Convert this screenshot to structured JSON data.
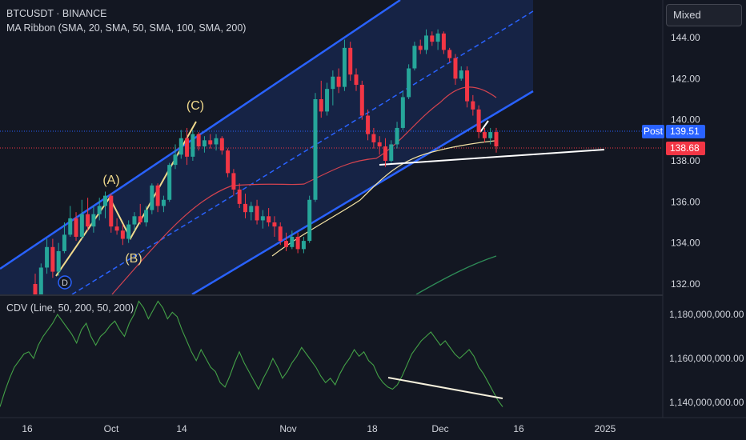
{
  "legend": {
    "symbol": "BTCUSDT · BINANCE",
    "ribbon": "MA Ribbon (SMA, 20, SMA, 50, SMA, 100, SMA, 200)",
    "cdv": "CDV (Line, 50, 200, 50, 200)"
  },
  "toolbar": {
    "mixed_label": "Mixed"
  },
  "price_tags": {
    "post_label": "Post",
    "post_value": "139.51",
    "last_value": "138.68"
  },
  "annotations": {
    "wave_a": "(A)",
    "wave_b": "(B)",
    "wave_c": "(C)",
    "wave_d": "D"
  },
  "colors": {
    "background": "#131722",
    "up": "#26a69a",
    "down": "#f23645",
    "channel": "#2962ff",
    "post_line": "#2962ff",
    "last_line": "#f23645",
    "ma20": "#d3434f",
    "ma50": "#f3e3a5",
    "ma200": "#2e8b57",
    "cdv_line": "#43a047",
    "wave": "#f0d98c",
    "divergence": "#ffffff"
  },
  "chart_data": [
    {
      "type": "candlestick",
      "title": "BTCUSDT · BINANCE",
      "x_ticks": [
        "16",
        "Oct",
        "14",
        "Nov",
        "18",
        "Dec",
        "16",
        "2025"
      ],
      "y_ticks": [
        "132.00",
        "134.00",
        "136.00",
        "138.00",
        "140.00",
        "142.00",
        "144.00"
      ],
      "ylim": [
        131.6,
        146.3
      ],
      "ohlc": [
        [
          132.0,
          132.5,
          131.2,
          131.4
        ],
        [
          131.4,
          133.0,
          131.3,
          132.8
        ],
        [
          132.8,
          134.2,
          132.5,
          133.8
        ],
        [
          133.8,
          134.2,
          132.3,
          132.6
        ],
        [
          132.6,
          134.0,
          132.4,
          133.6
        ],
        [
          133.6,
          135.0,
          133.5,
          134.4
        ],
        [
          134.4,
          135.8,
          134.3,
          135.2
        ],
        [
          135.2,
          135.5,
          134.1,
          134.3
        ],
        [
          134.3,
          136.1,
          134.2,
          135.4
        ],
        [
          135.4,
          136.2,
          134.6,
          134.8
        ],
        [
          134.8,
          135.8,
          134.5,
          135.4
        ],
        [
          135.4,
          136.2,
          135.1,
          135.8
        ],
        [
          135.8,
          136.5,
          135.2,
          136.3
        ],
        [
          136.3,
          136.4,
          134.5,
          134.8
        ],
        [
          134.8,
          135.2,
          134.4,
          134.6
        ],
        [
          134.6,
          134.9,
          133.9,
          134.2
        ],
        [
          134.2,
          135.1,
          134.0,
          134.9
        ],
        [
          134.9,
          135.5,
          134.6,
          135.3
        ],
        [
          135.3,
          135.9,
          134.9,
          135.0
        ],
        [
          135.0,
          135.8,
          134.8,
          135.6
        ],
        [
          135.6,
          136.9,
          135.4,
          136.8
        ],
        [
          136.8,
          136.9,
          135.5,
          135.8
        ],
        [
          135.8,
          136.3,
          135.5,
          136.1
        ],
        [
          136.1,
          137.9,
          136.0,
          137.8
        ],
        [
          137.8,
          138.8,
          137.6,
          138.3
        ],
        [
          138.3,
          139.5,
          138.1,
          139.1
        ],
        [
          139.1,
          139.6,
          137.8,
          138.2
        ],
        [
          138.2,
          139.5,
          138.0,
          139.3
        ],
        [
          139.3,
          139.4,
          138.5,
          138.7
        ],
        [
          138.7,
          139.2,
          138.4,
          139.0
        ],
        [
          139.0,
          139.3,
          138.6,
          138.8
        ],
        [
          138.8,
          139.3,
          138.5,
          139.1
        ],
        [
          139.1,
          139.2,
          138.3,
          138.5
        ],
        [
          138.5,
          138.6,
          137.2,
          137.4
        ],
        [
          137.4,
          137.6,
          136.3,
          136.6
        ],
        [
          136.6,
          136.9,
          135.7,
          135.9
        ],
        [
          135.9,
          136.4,
          135.2,
          135.5
        ],
        [
          135.5,
          136.0,
          135.1,
          135.8
        ],
        [
          135.8,
          136.1,
          134.9,
          135.1
        ],
        [
          135.1,
          135.6,
          134.7,
          135.3
        ],
        [
          135.3,
          135.7,
          134.8,
          135.0
        ],
        [
          135.0,
          135.3,
          134.3,
          134.8
        ],
        [
          134.8,
          135.0,
          133.9,
          134.1
        ],
        [
          134.1,
          134.5,
          133.6,
          133.8
        ],
        [
          133.8,
          134.6,
          133.7,
          134.3
        ],
        [
          134.3,
          134.5,
          133.5,
          133.7
        ],
        [
          133.7,
          134.3,
          133.5,
          134.1
        ],
        [
          134.1,
          136.3,
          134.0,
          136.1
        ],
        [
          136.1,
          141.3,
          136.0,
          141.0
        ],
        [
          141.0,
          141.9,
          140.1,
          140.4
        ],
        [
          140.4,
          141.8,
          140.2,
          141.5
        ],
        [
          141.5,
          142.4,
          140.7,
          142.1
        ],
        [
          142.1,
          142.5,
          141.3,
          141.6
        ],
        [
          141.6,
          143.9,
          141.4,
          143.5
        ],
        [
          143.5,
          143.8,
          141.9,
          142.2
        ],
        [
          142.2,
          142.5,
          141.4,
          141.7
        ],
        [
          141.7,
          141.9,
          140.0,
          140.2
        ],
        [
          140.2,
          140.5,
          139.0,
          139.3
        ],
        [
          139.3,
          139.6,
          138.6,
          138.9
        ],
        [
          138.9,
          139.2,
          138.3,
          138.7
        ],
        [
          138.7,
          139.1,
          137.7,
          138.0
        ],
        [
          138.0,
          139.0,
          137.9,
          138.8
        ],
        [
          138.8,
          139.9,
          138.6,
          139.6
        ],
        [
          139.6,
          141.4,
          139.5,
          141.1
        ],
        [
          141.1,
          142.7,
          141.0,
          142.5
        ],
        [
          142.5,
          143.8,
          142.4,
          143.6
        ],
        [
          143.6,
          143.9,
          143.2,
          143.4
        ],
        [
          143.4,
          144.4,
          143.2,
          144.1
        ],
        [
          144.1,
          144.3,
          143.6,
          143.8
        ],
        [
          143.8,
          144.4,
          143.4,
          144.2
        ],
        [
          144.2,
          144.3,
          143.2,
          143.4
        ],
        [
          143.4,
          143.5,
          142.8,
          143.0
        ],
        [
          143.0,
          143.2,
          141.7,
          142.0
        ],
        [
          142.0,
          142.6,
          141.9,
          142.4
        ],
        [
          142.4,
          142.6,
          140.6,
          140.9
        ],
        [
          140.9,
          141.2,
          140.2,
          140.5
        ],
        [
          140.5,
          140.7,
          139.1,
          139.4
        ],
        [
          139.4,
          139.6,
          138.9,
          139.1
        ],
        [
          139.1,
          139.6,
          138.8,
          139.4
        ],
        [
          139.4,
          139.6,
          138.4,
          138.7
        ]
      ],
      "post_price": 139.51,
      "last_price": 138.68
    },
    {
      "type": "line",
      "title": "CDV (Line, 50, 200, 50, 200)",
      "y_ticks": [
        "1,140,000,000.00",
        "1,160,000,000.00",
        "1,180,000,000.00"
      ],
      "ylim": [
        1126000000,
        1188000000
      ],
      "values": [
        1138,
        1145,
        1151,
        1156,
        1159,
        1162,
        1163,
        1160,
        1166,
        1170,
        1173,
        1176,
        1180,
        1177,
        1174,
        1171,
        1167,
        1173,
        1176,
        1170,
        1166,
        1170,
        1172,
        1175,
        1177,
        1173,
        1170,
        1176,
        1180,
        1186,
        1183,
        1178,
        1182,
        1186,
        1183,
        1178,
        1181,
        1179,
        1173,
        1168,
        1163,
        1159,
        1164,
        1160,
        1156,
        1154,
        1149,
        1147,
        1152,
        1158,
        1163,
        1158,
        1154,
        1150,
        1146,
        1151,
        1155,
        1160,
        1156,
        1151,
        1154,
        1158,
        1161,
        1165,
        1162,
        1159,
        1156,
        1152,
        1149,
        1151,
        1148,
        1153,
        1157,
        1160,
        1164,
        1161,
        1163,
        1159,
        1157,
        1152,
        1149,
        1147,
        1146,
        1148,
        1152,
        1157,
        1162,
        1165,
        1168,
        1170,
        1172,
        1169,
        1166,
        1168,
        1165,
        1162,
        1160,
        1162,
        1164,
        1161,
        1156,
        1153,
        1149,
        1145,
        1141,
        1138
      ],
      "unit": "millions"
    }
  ]
}
